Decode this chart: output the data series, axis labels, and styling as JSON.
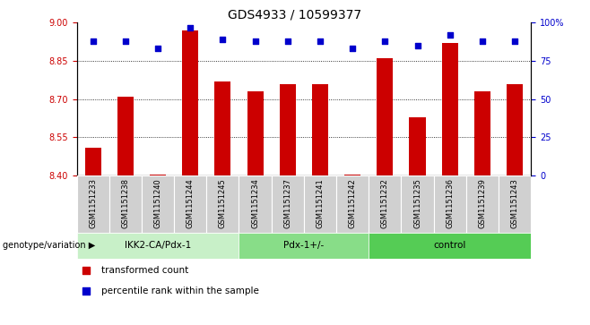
{
  "title": "GDS4933 / 10599377",
  "samples": [
    "GSM1151233",
    "GSM1151238",
    "GSM1151240",
    "GSM1151244",
    "GSM1151245",
    "GSM1151234",
    "GSM1151237",
    "GSM1151241",
    "GSM1151242",
    "GSM1151232",
    "GSM1151235",
    "GSM1151236",
    "GSM1151239",
    "GSM1151243"
  ],
  "bar_values": [
    8.51,
    8.71,
    8.405,
    8.97,
    8.77,
    8.73,
    8.76,
    8.76,
    8.405,
    8.86,
    8.63,
    8.92,
    8.73,
    8.76
  ],
  "percentile_values": [
    88,
    88,
    83,
    97,
    89,
    88,
    88,
    88,
    83,
    88,
    85,
    92,
    88,
    88
  ],
  "bar_bottom": 8.4,
  "ylim_left": [
    8.4,
    9.0
  ],
  "ylim_right": [
    0,
    100
  ],
  "yticks_left": [
    8.4,
    8.55,
    8.7,
    8.85,
    9.0
  ],
  "yticks_right": [
    0,
    25,
    50,
    75,
    100
  ],
  "ytick_labels_right": [
    "0",
    "25",
    "50",
    "75",
    "100%"
  ],
  "hlines": [
    8.55,
    8.7,
    8.85
  ],
  "bar_color": "#cc0000",
  "dot_color": "#0000cc",
  "groups": [
    {
      "label": "IKK2-CA/Pdx-1",
      "start": 0,
      "end": 5,
      "color": "#c8f0c8"
    },
    {
      "label": "Pdx-1+/-",
      "start": 5,
      "end": 9,
      "color": "#88dd88"
    },
    {
      "label": "control",
      "start": 9,
      "end": 14,
      "color": "#55cc55"
    }
  ],
  "group_label": "genotype/variation",
  "legend_bar_label": "transformed count",
  "legend_dot_label": "percentile rank within the sample",
  "tick_color_left": "#cc0000",
  "tick_color_right": "#0000cc",
  "bar_width": 0.5,
  "sample_box_color": "#d0d0d0",
  "fig_width": 6.58,
  "fig_height": 3.63
}
